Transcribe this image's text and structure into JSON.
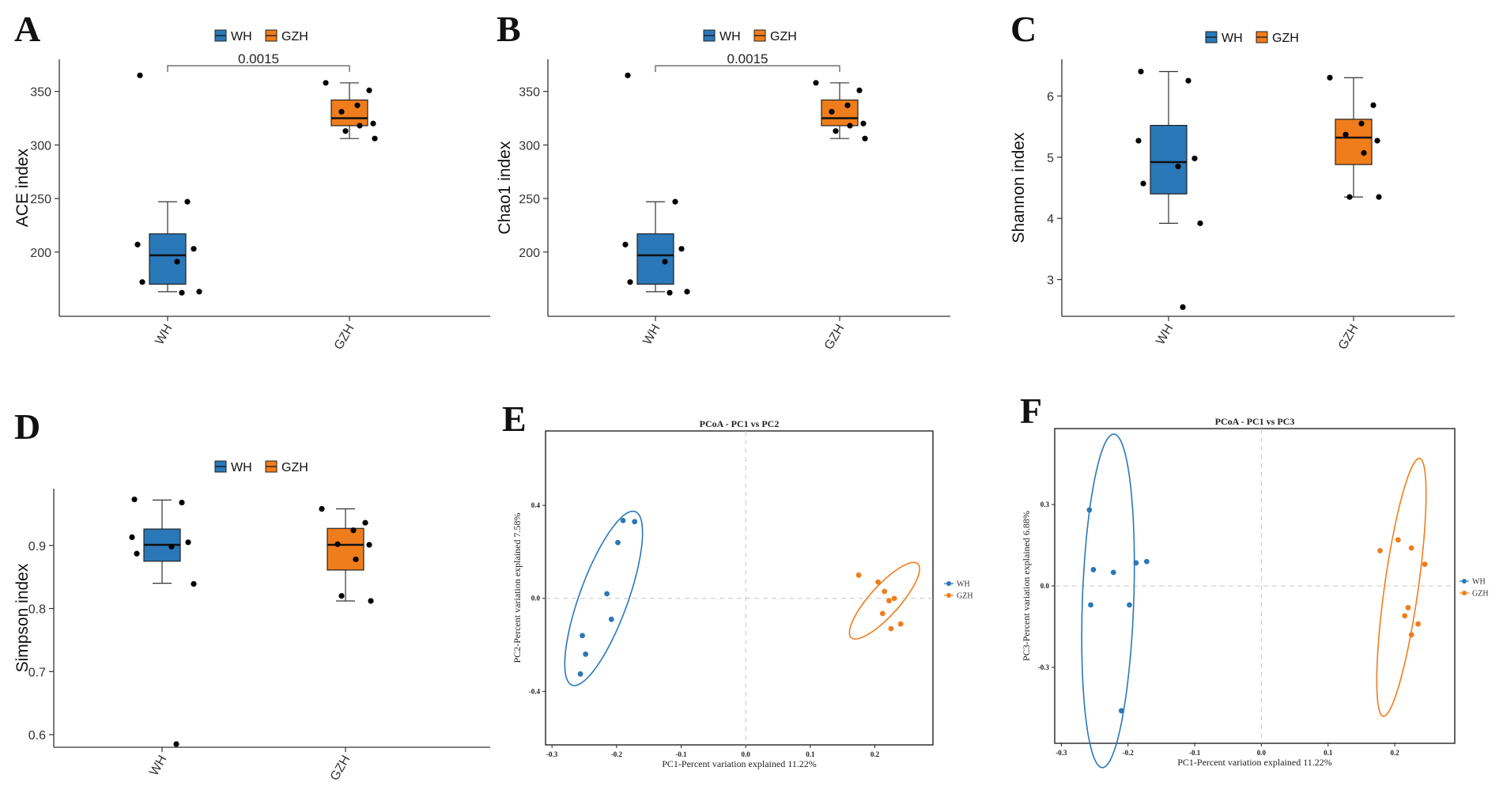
{
  "colors": {
    "WH": "#2a78b8",
    "GZH": "#f07d1c",
    "axis": "#333333",
    "grid": "#c8c8c8"
  },
  "chart_data": [
    {
      "panel": "A",
      "type": "box",
      "ylabel": "ACE index",
      "categories": [
        "WH",
        "GZH"
      ],
      "legend": [
        "WH",
        "GZH"
      ],
      "ylim": [
        140,
        380
      ],
      "yticks": [
        200,
        250,
        300,
        350
      ],
      "boxes": [
        {
          "group": "WH",
          "q1": 170,
          "median": 197,
          "q3": 217,
          "whisker_low": 163,
          "whisker_high": 247
        },
        {
          "group": "GZH",
          "q1": 318,
          "median": 325,
          "q3": 342,
          "whisker_low": 306,
          "whisker_high": 358
        }
      ],
      "points": [
        {
          "group": "WH",
          "values": [
            365,
            247,
            207,
            203,
            191,
            172,
            163,
            162
          ]
        },
        {
          "group": "GZH",
          "values": [
            358,
            351,
            337,
            331,
            320,
            318,
            313,
            306
          ]
        }
      ],
      "comparison": {
        "label": "0.0015",
        "y": 374
      }
    },
    {
      "panel": "B",
      "type": "box",
      "ylabel": "Chao1 index",
      "categories": [
        "WH",
        "GZH"
      ],
      "legend": [
        "WH",
        "GZH"
      ],
      "ylim": [
        140,
        380
      ],
      "yticks": [
        200,
        250,
        300,
        350
      ],
      "boxes": [
        {
          "group": "WH",
          "q1": 170,
          "median": 197,
          "q3": 217,
          "whisker_low": 163,
          "whisker_high": 247
        },
        {
          "group": "GZH",
          "q1": 318,
          "median": 325,
          "q3": 342,
          "whisker_low": 306,
          "whisker_high": 358
        }
      ],
      "points": [
        {
          "group": "WH",
          "values": [
            365,
            247,
            207,
            203,
            191,
            172,
            163,
            162
          ]
        },
        {
          "group": "GZH",
          "values": [
            358,
            351,
            337,
            331,
            320,
            318,
            313,
            306
          ]
        }
      ],
      "comparison": {
        "label": "0.0015",
        "y": 374
      }
    },
    {
      "panel": "C",
      "type": "box",
      "ylabel": "Shannon index",
      "categories": [
        "WH",
        "GZH"
      ],
      "legend": [
        "WH",
        "GZH"
      ],
      "ylim": [
        2.4,
        6.6
      ],
      "yticks": [
        3,
        4,
        5,
        6
      ],
      "boxes": [
        {
          "group": "WH",
          "q1": 4.4,
          "median": 4.92,
          "q3": 5.52,
          "whisker_low": 3.92,
          "whisker_high": 6.4
        },
        {
          "group": "GZH",
          "q1": 4.88,
          "median": 5.32,
          "q3": 5.62,
          "whisker_low": 4.35,
          "whisker_high": 6.3
        }
      ],
      "points": [
        {
          "group": "WH",
          "values": [
            6.4,
            6.25,
            5.27,
            4.98,
            4.85,
            4.57,
            3.92,
            2.55
          ]
        },
        {
          "group": "GZH",
          "values": [
            6.3,
            5.85,
            5.55,
            5.37,
            5.27,
            5.07,
            4.35,
            4.35
          ]
        }
      ]
    },
    {
      "panel": "D",
      "type": "box",
      "ylabel": "Simpson index",
      "categories": [
        "WH",
        "GZH"
      ],
      "legend": [
        "WH",
        "GZH"
      ],
      "ylim": [
        0.58,
        0.99
      ],
      "yticks": [
        0.6,
        0.7,
        0.8,
        0.9
      ],
      "boxes": [
        {
          "group": "WH",
          "q1": 0.875,
          "median": 0.901,
          "q3": 0.926,
          "whisker_low": 0.84,
          "whisker_high": 0.972
        },
        {
          "group": "GZH",
          "q1": 0.861,
          "median": 0.901,
          "q3": 0.927,
          "whisker_low": 0.812,
          "whisker_high": 0.958
        }
      ],
      "points": [
        {
          "group": "WH",
          "values": [
            0.973,
            0.968,
            0.913,
            0.905,
            0.898,
            0.887,
            0.839,
            0.585
          ]
        },
        {
          "group": "GZH",
          "values": [
            0.958,
            0.936,
            0.924,
            0.902,
            0.901,
            0.878,
            0.82,
            0.812
          ]
        }
      ]
    },
    {
      "panel": "E",
      "type": "scatter",
      "title": "PCoA - PC1 vs PC2",
      "xlabel": "PC1-Percent variation explained 11.22%",
      "ylabel": "PC2-Percent variation explained 7.58%",
      "xlim": [
        -0.31,
        0.29
      ],
      "ylim": [
        -0.63,
        0.72
      ],
      "xticks": [
        -0.3,
        -0.2,
        -0.1,
        0.0,
        0.1,
        0.2
      ],
      "xtick_labels": [
        "-0.3",
        "-0.2",
        "-0.1",
        "0.0",
        "0.1",
        "0.2"
      ],
      "yticks": [
        -0.4,
        0.0,
        0.4
      ],
      "ytick_labels": [
        "-0.4",
        "0.0",
        "0.4"
      ],
      "legend": [
        "WH",
        "GZH"
      ],
      "series": [
        {
          "name": "WH",
          "points": [
            [
              -0.19,
              0.335
            ],
            [
              -0.172,
              0.33
            ],
            [
              -0.198,
              0.24
            ],
            [
              -0.215,
              0.02
            ],
            [
              -0.208,
              -0.09
            ],
            [
              -0.253,
              -0.16
            ],
            [
              -0.248,
              -0.24
            ],
            [
              -0.256,
              -0.325
            ]
          ],
          "ellipse": {
            "cx": -0.22,
            "cy": 0.0,
            "rx": 0.26,
            "ry": 0.068,
            "angle_deg": -70
          }
        },
        {
          "name": "GZH",
          "points": [
            [
              0.175,
              0.1
            ],
            [
              0.205,
              0.07
            ],
            [
              0.215,
              0.03
            ],
            [
              0.222,
              -0.01
            ],
            [
              0.23,
              0.0
            ],
            [
              0.212,
              -0.065
            ],
            [
              0.24,
              -0.11
            ],
            [
              0.225,
              -0.13
            ]
          ],
          "ellipse": {
            "cx": 0.215,
            "cy": -0.01,
            "rx": 0.14,
            "ry": 0.042,
            "angle_deg": -48
          }
        }
      ]
    },
    {
      "panel": "F",
      "type": "scatter",
      "title": "PCoA - PC1 vs PC3",
      "xlabel": "PC1-Percent variation explained 11.22%",
      "ylabel": "PC3-Percent variation explained 6.88%",
      "xlim": [
        -0.31,
        0.29
      ],
      "ylim": [
        -0.58,
        0.58
      ],
      "xticks": [
        -0.3,
        -0.2,
        -0.1,
        0.0,
        0.1,
        0.2
      ],
      "xtick_labels": [
        "-0.3",
        "-0.2",
        "-0.1",
        "0.0",
        "0.1",
        "0.2"
      ],
      "yticks": [
        -0.3,
        0.0,
        0.3
      ],
      "ytick_labels": [
        "-0.3",
        "0.0",
        "0.3"
      ],
      "legend": [
        "WH",
        "GZH"
      ],
      "series": [
        {
          "name": "WH",
          "points": [
            [
              -0.258,
              0.28
            ],
            [
              -0.252,
              0.06
            ],
            [
              -0.222,
              0.05
            ],
            [
              -0.188,
              0.085
            ],
            [
              -0.172,
              0.09
            ],
            [
              -0.256,
              -0.07
            ],
            [
              -0.198,
              -0.07
            ],
            [
              -0.21,
              -0.46
            ]
          ],
          "ellipse": {
            "cx": -0.23,
            "cy": -0.055,
            "rx": 0.455,
            "ry": 0.07,
            "angle_deg": -88
          }
        },
        {
          "name": "GZH",
          "points": [
            [
              0.178,
              0.13
            ],
            [
              0.205,
              0.17
            ],
            [
              0.225,
              0.14
            ],
            [
              0.245,
              0.08
            ],
            [
              0.22,
              -0.08
            ],
            [
              0.215,
              -0.11
            ],
            [
              0.235,
              -0.14
            ],
            [
              0.225,
              -0.18
            ]
          ],
          "ellipse": {
            "cx": 0.21,
            "cy": -0.005,
            "rx": 0.355,
            "ry": 0.046,
            "angle_deg": -82
          }
        }
      ]
    }
  ]
}
